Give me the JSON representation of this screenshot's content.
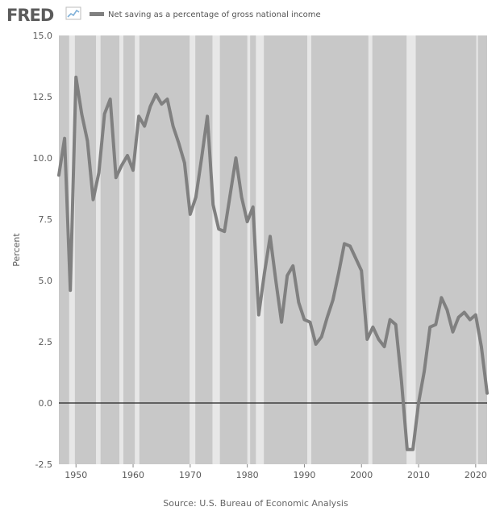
{
  "brand": {
    "logo_text": "FRED"
  },
  "chart_data": {
    "type": "line",
    "title": "",
    "legend": {
      "placement": "top-left",
      "entries": [
        "Net saving as a percentage of gross national income"
      ]
    },
    "ylabel": "Percent",
    "xlabel": "",
    "source": "Source: U.S. Bureau of Economic Analysis",
    "xlim": [
      1947,
      2022
    ],
    "ylim": [
      -2.5,
      15
    ],
    "yticks": [
      -2.5,
      0,
      2.5,
      5,
      7.5,
      10,
      12.5,
      15
    ],
    "ytick_labels": [
      "-2.5",
      "0.0",
      "2.5",
      "5.0",
      "7.5",
      "10.0",
      "12.5",
      "15.0"
    ],
    "xticks": [
      1950,
      1960,
      1970,
      1980,
      1990,
      2000,
      2010,
      2020
    ],
    "xtick_labels": [
      "1950",
      "1960",
      "1970",
      "1980",
      "1990",
      "2000",
      "2010",
      "2020"
    ],
    "zero_line": true,
    "recessions": [
      [
        1948.8,
        1949.8
      ],
      [
        1953.5,
        1954.3
      ],
      [
        1957.6,
        1958.3
      ],
      [
        1960.3,
        1961.1
      ],
      [
        1969.9,
        1970.9
      ],
      [
        1973.9,
        1975.2
      ],
      [
        1980.0,
        1980.5
      ],
      [
        1981.5,
        1982.9
      ],
      [
        1990.5,
        1991.2
      ],
      [
        2001.2,
        2001.9
      ],
      [
        2007.9,
        2009.5
      ],
      [
        2020.1,
        2020.4
      ]
    ],
    "colors": {
      "line": "#808080",
      "plot_bg": "#c8c8c8",
      "recession": "#e7e7e7",
      "zero_line": "#222222"
    },
    "series": [
      {
        "name": "Net saving as a percentage of gross national income",
        "x": [
          1947,
          1948,
          1949,
          1950,
          1951,
          1952,
          1953,
          1954,
          1955,
          1956,
          1957,
          1958,
          1959,
          1960,
          1961,
          1962,
          1963,
          1964,
          1965,
          1966,
          1967,
          1968,
          1969,
          1970,
          1971,
          1972,
          1973,
          1974,
          1975,
          1976,
          1977,
          1978,
          1979,
          1980,
          1981,
          1982,
          1983,
          1984,
          1985,
          1986,
          1987,
          1988,
          1989,
          1990,
          1991,
          1992,
          1993,
          1994,
          1995,
          1996,
          1997,
          1998,
          1999,
          2000,
          2001,
          2002,
          2003,
          2004,
          2005,
          2006,
          2007,
          2008,
          2009,
          2010,
          2011,
          2012,
          2013,
          2014,
          2015,
          2016,
          2017,
          2018,
          2019,
          2020,
          2021,
          2022
        ],
        "values": [
          9.3,
          10.8,
          4.6,
          13.3,
          11.8,
          10.7,
          8.3,
          9.4,
          11.8,
          12.4,
          9.2,
          9.7,
          10.1,
          9.5,
          11.7,
          11.3,
          12.1,
          12.6,
          12.2,
          12.4,
          11.3,
          10.6,
          9.8,
          7.7,
          8.4,
          10.0,
          11.7,
          8.1,
          7.1,
          7.0,
          8.5,
          10.0,
          8.4,
          7.4,
          8.0,
          3.6,
          5.3,
          6.8,
          5.0,
          3.3,
          5.2,
          5.6,
          4.1,
          3.4,
          3.3,
          2.4,
          2.7,
          3.5,
          4.2,
          5.3,
          6.5,
          6.4,
          5.9,
          5.4,
          2.6,
          3.1,
          2.6,
          2.3,
          3.4,
          3.2,
          0.9,
          -1.9,
          -1.9,
          0.0,
          1.3,
          3.1,
          3.2,
          4.3,
          3.8,
          2.9,
          3.5,
          3.7,
          3.4,
          3.6,
          2.3,
          0.4
        ]
      }
    ]
  }
}
